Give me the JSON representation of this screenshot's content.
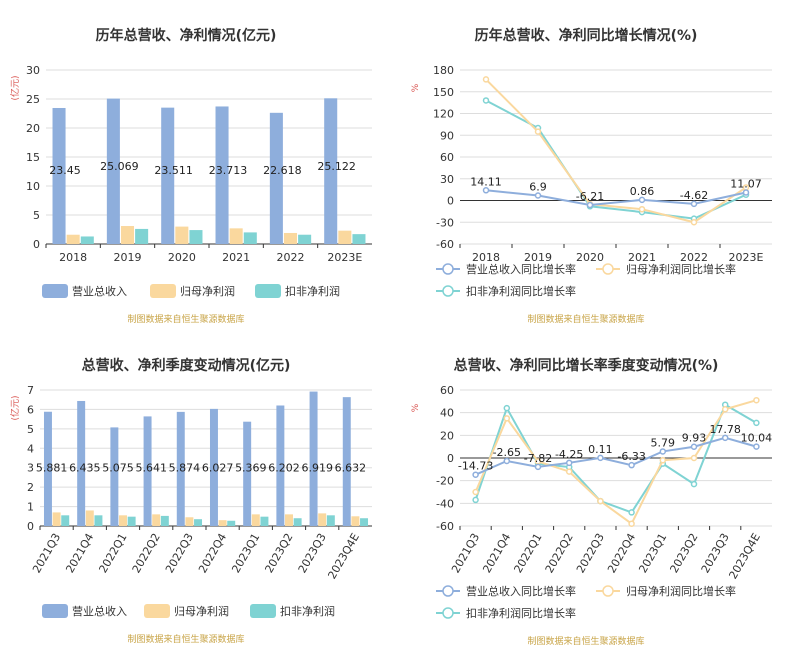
{
  "chart_data": [
    {
      "type": "bar",
      "title": "历年总营收、净利情况(亿元)",
      "ylabel": "(亿元)",
      "ylim": [
        0,
        30
      ],
      "yticks": [
        0,
        5,
        10,
        15,
        20,
        25,
        30
      ],
      "categories": [
        "2018",
        "2019",
        "2020",
        "2021",
        "2022",
        "2023E"
      ],
      "series": [
        {
          "name": "营业总收入",
          "values": [
            23.45,
            25.069,
            23.511,
            23.713,
            22.618,
            25.122
          ],
          "labels": [
            "23.45",
            "25.069",
            "23.511",
            "23.713",
            "22.618",
            "25.122"
          ],
          "color": "#8eaedc"
        },
        {
          "name": "归母净利润",
          "values": [
            1.6,
            3.1,
            3.0,
            2.7,
            1.9,
            2.3
          ],
          "color": "#fad89e"
        },
        {
          "name": "扣非净利润",
          "values": [
            1.3,
            2.6,
            2.4,
            2.0,
            1.6,
            1.7
          ],
          "color": "#7fd3d3"
        }
      ],
      "grid": true,
      "legend": "bottom",
      "source": "制图数据来自恒生聚源数据库"
    },
    {
      "type": "line",
      "title": "历年总营收、净利同比增长情况(%)",
      "ylabel": "%",
      "ylim": [
        -60,
        180
      ],
      "yticks": [
        -60,
        -30,
        0,
        30,
        60,
        90,
        120,
        150,
        180
      ],
      "categories": [
        "2018",
        "2019",
        "2020",
        "2021",
        "2022",
        "2023E"
      ],
      "series": [
        {
          "name": "营业总收入同比增长率",
          "values": [
            14.11,
            6.9,
            -6.21,
            0.86,
            -4.62,
            11.07
          ],
          "labels": [
            "14.11",
            "6.9",
            "-6.21",
            "0.86",
            "-4.62",
            "11.07"
          ],
          "color": "#8eaedc"
        },
        {
          "name": "归母净利润同比增长率",
          "values": [
            167,
            95,
            -5,
            -12,
            -30,
            18
          ],
          "color": "#fad89e"
        },
        {
          "name": "扣非净利润同比增长率",
          "values": [
            138,
            100,
            -8,
            -16,
            -25,
            8
          ],
          "color": "#7fd3d3"
        }
      ],
      "grid": true,
      "legend": "bottom",
      "source": "制图数据来自恒生聚源数据库"
    },
    {
      "type": "bar",
      "title": "总营收、净利季度变动情况(亿元)",
      "ylabel": "(亿元)",
      "ylim": [
        0,
        7
      ],
      "yticks": [
        0,
        1,
        2,
        3,
        4,
        5,
        6,
        7
      ],
      "categories": [
        "2021Q3",
        "2021Q4",
        "2022Q1",
        "2022Q2",
        "2022Q3",
        "2022Q4",
        "2023Q1",
        "2023Q2",
        "2023Q3",
        "2023Q4E"
      ],
      "series": [
        {
          "name": "营业总收入",
          "values": [
            5.881,
            6.435,
            5.075,
            5.641,
            5.874,
            6.027,
            5.369,
            6.202,
            6.919,
            6.632
          ],
          "labels": [
            "5.881",
            "6.435",
            "5.075",
            "5.641",
            "5.874",
            "6.027",
            "5.369",
            "6.202",
            "6.919",
            "6.632"
          ],
          "color": "#8eaedc"
        },
        {
          "name": "归母净利润",
          "values": [
            0.7,
            0.8,
            0.55,
            0.6,
            0.45,
            0.3,
            0.6,
            0.6,
            0.65,
            0.5
          ],
          "color": "#fad89e"
        },
        {
          "name": "扣非净利润",
          "values": [
            0.55,
            0.55,
            0.48,
            0.52,
            0.35,
            0.27,
            0.48,
            0.4,
            0.55,
            0.4
          ],
          "color": "#7fd3d3"
        }
      ],
      "grid": true,
      "legend": "bottom",
      "source": "制图数据来自恒生聚源数据库"
    },
    {
      "type": "line",
      "title": "总营收、净利同比增长率季度变动情况(%)",
      "ylabel": "%",
      "ylim": [
        -60,
        60
      ],
      "yticks": [
        -60,
        -40,
        -20,
        0,
        20,
        40,
        60
      ],
      "categories": [
        "2021Q3",
        "2021Q4",
        "2022Q1",
        "2022Q2",
        "2022Q3",
        "2022Q4",
        "2023Q1",
        "2023Q2",
        "2023Q3",
        "2023Q4E"
      ],
      "series": [
        {
          "name": "营业总收入同比增长率",
          "values": [
            -14.73,
            -2.65,
            -7.82,
            -4.25,
            0.11,
            -6.33,
            5.79,
            9.93,
            17.78,
            10.04
          ],
          "labels": [
            "-14.73",
            "-2.65",
            "-7.82",
            "-4.25",
            "0.11",
            "-6.33",
            "5.79",
            "9.93",
            "17.78",
            "10.04"
          ],
          "color": "#8eaedc"
        },
        {
          "name": "归母净利润同比增长率",
          "values": [
            -30,
            35,
            -3,
            -12,
            -38,
            -58,
            -2,
            0,
            43,
            51
          ],
          "color": "#fad89e"
        },
        {
          "name": "扣非净利润同比增长率",
          "values": [
            -37,
            44,
            -5,
            -8,
            -38,
            -48,
            -5,
            -23,
            47,
            31
          ],
          "color": "#7fd3d3"
        }
      ],
      "grid": true,
      "legend": "bottom",
      "source": "制图数据来自恒生聚源数据库"
    }
  ]
}
